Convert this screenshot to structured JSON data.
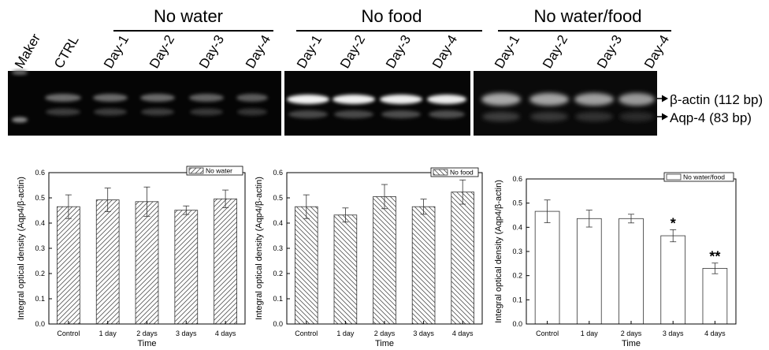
{
  "gel": {
    "groups": [
      {
        "label": "No water",
        "lanes": [
          "Day-1",
          "Day-2",
          "Day-3",
          "Day-4"
        ]
      },
      {
        "label": "No food",
        "lanes": [
          "Day-1",
          "Day-2",
          "Day-3",
          "Day-4"
        ]
      },
      {
        "label": "No water/food",
        "lanes": [
          "Day-1",
          "Day-2",
          "Day-3",
          "Day-4"
        ]
      }
    ],
    "marker_label": "Maker",
    "ctrl_label": "CTRL",
    "bands": [
      {
        "label": "β-actin (112 bp)"
      },
      {
        "label": "Aqp-4 (83 bp)"
      }
    ]
  },
  "chart_data": [
    {
      "type": "bar",
      "categories": [
        "Control",
        "1 day",
        "2 days",
        "3 days",
        "4 days"
      ],
      "values": [
        0.465,
        0.492,
        0.485,
        0.451,
        0.496
      ],
      "errors": [
        0.047,
        0.047,
        0.058,
        0.017,
        0.035
      ],
      "legend": "No water",
      "legend_position": "top-right",
      "pattern": "diag-right",
      "xlabel": "Time",
      "ylabel": "Integral optical density (Aqp4/β-actin)",
      "ylim": [
        0,
        0.6
      ],
      "yticks": [
        "0.0",
        "0.1",
        "0.2",
        "0.3",
        "0.4",
        "0.5",
        "0.6"
      ],
      "annotations": [
        "",
        "",
        "",
        "",
        ""
      ]
    },
    {
      "type": "bar",
      "categories": [
        "Control",
        "1 day",
        "2 days",
        "3 days",
        "4 days"
      ],
      "values": [
        0.465,
        0.432,
        0.505,
        0.465,
        0.523
      ],
      "errors": [
        0.047,
        0.028,
        0.048,
        0.03,
        0.048
      ],
      "legend": "No food",
      "legend_position": "top-right",
      "pattern": "diag-left",
      "xlabel": "Time",
      "ylabel": "Integral optical density (Aqp4/β-actin)",
      "ylim": [
        0,
        0.6
      ],
      "yticks": [
        "0.0",
        "0.1",
        "0.2",
        "0.3",
        "0.4",
        "0.5",
        "0.6"
      ],
      "annotations": [
        "",
        "",
        "",
        "",
        ""
      ]
    },
    {
      "type": "bar",
      "categories": [
        "Control",
        "1 day",
        "2 days",
        "3 days",
        "4 days"
      ],
      "values": [
        0.466,
        0.436,
        0.436,
        0.365,
        0.23
      ],
      "errors": [
        0.047,
        0.035,
        0.018,
        0.025,
        0.022
      ],
      "legend": "No water/food",
      "legend_position": "top-right",
      "pattern": "none",
      "xlabel": "Time",
      "ylabel": "Integral optical density (Aqp4/β-actin)",
      "ylim": [
        0,
        0.6
      ],
      "yticks": [
        "0.0",
        "0.1",
        "0.2",
        "0.3",
        "0.4",
        "0.5",
        "0.6"
      ],
      "annotations": [
        "",
        "",
        "",
        "*",
        "**"
      ]
    }
  ]
}
